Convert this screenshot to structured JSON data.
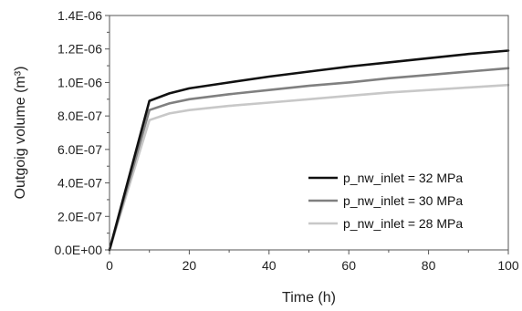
{
  "chart_data": {
    "type": "line",
    "title": "",
    "xlabel": "Time (h)",
    "ylabel": "Outgoig volume (m³)",
    "xlim": [
      0,
      100
    ],
    "ylim": [
      0,
      1.4e-06
    ],
    "grid": false,
    "legend_position": "bottom-right",
    "x_ticks": [
      0,
      20,
      40,
      60,
      80,
      100
    ],
    "x_tick_labels": [
      "0",
      "20",
      "40",
      "60",
      "80",
      "100"
    ],
    "y_ticks": [
      0,
      2e-07,
      4e-07,
      6e-07,
      8e-07,
      1e-06,
      1.2e-06,
      1.4e-06
    ],
    "y_tick_labels": [
      "0.0E+00",
      "2.0E-07",
      "4.0E-07",
      "6.0E-07",
      "8.0E-07",
      "1.0E-06",
      "1.2E-06",
      "1.4E-06"
    ],
    "x": [
      0,
      10,
      15,
      20,
      30,
      40,
      50,
      60,
      70,
      80,
      90,
      100
    ],
    "series": [
      {
        "name": "p_nw_inlet = 32 MPa",
        "color": "#111111",
        "values": [
          0,
          8.9e-07,
          9.35e-07,
          9.65e-07,
          1e-06,
          1.035e-06,
          1.065e-06,
          1.095e-06,
          1.12e-06,
          1.145e-06,
          1.17e-06,
          1.19e-06
        ]
      },
      {
        "name": "p_nw_inlet = 30 MPa",
        "color": "#808080",
        "values": [
          0,
          8.35e-07,
          8.75e-07,
          9e-07,
          9.3e-07,
          9.55e-07,
          9.8e-07,
          1e-06,
          1.025e-06,
          1.045e-06,
          1.065e-06,
          1.085e-06
        ]
      },
      {
        "name": "p_nw_inlet = 28 MPa",
        "color": "#c8c8c8",
        "values": [
          0,
          7.75e-07,
          8.15e-07,
          8.35e-07,
          8.6e-07,
          8.8e-07,
          9e-07,
          9.2e-07,
          9.4e-07,
          9.55e-07,
          9.7e-07,
          9.85e-07
        ]
      }
    ]
  }
}
